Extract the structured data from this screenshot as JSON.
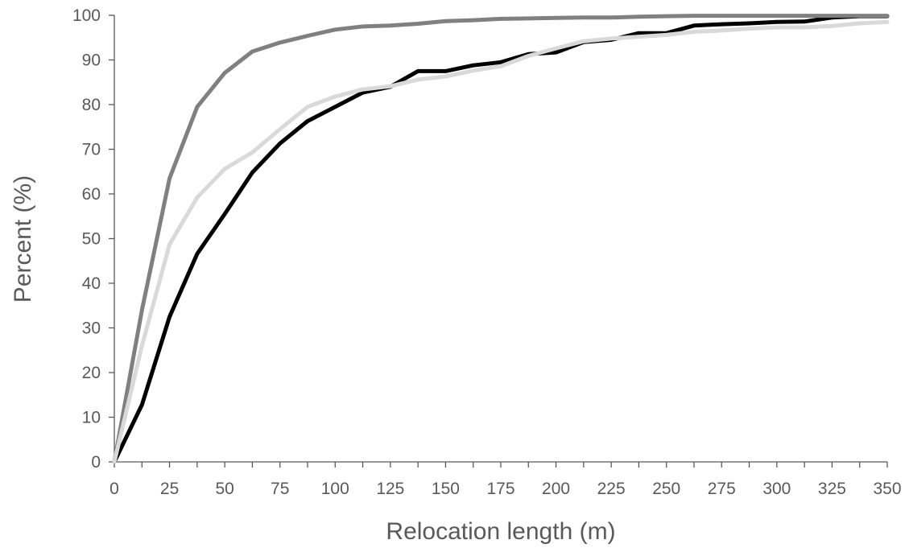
{
  "chart_data": {
    "type": "line",
    "xlabel": "Relocation length (m)",
    "ylabel": "Percent (%)",
    "xlim": [
      0,
      350
    ],
    "ylim": [
      0,
      100
    ],
    "x_ticks": [
      0,
      25,
      50,
      75,
      100,
      125,
      150,
      175,
      200,
      225,
      250,
      275,
      300,
      325,
      350
    ],
    "y_ticks": [
      0,
      10,
      20,
      30,
      40,
      50,
      60,
      70,
      80,
      90,
      100
    ],
    "grid": false,
    "legend": "none",
    "x": [
      0,
      12.5,
      25,
      37.5,
      50,
      62.5,
      75,
      87.5,
      100,
      112.5,
      125,
      137.5,
      150,
      162.5,
      175,
      187.5,
      200,
      212.5,
      225,
      237.5,
      250,
      262.5,
      275,
      287.5,
      300,
      312.5,
      325,
      337.5,
      350
    ],
    "series": [
      {
        "color": "#000000",
        "values": [
          0,
          12.8,
          32.5,
          46.6,
          55.5,
          64.8,
          71.3,
          76.3,
          79.5,
          82.7,
          84,
          87.5,
          87.5,
          88.8,
          89.5,
          91.3,
          91.7,
          94,
          94.5,
          96,
          96,
          97.7,
          98,
          98.2,
          98.5,
          98.6,
          99.5,
          99.8,
          99.8
        ]
      },
      {
        "color": "#808080",
        "values": [
          0,
          34,
          63.5,
          79.5,
          87.1,
          91.9,
          93.9,
          95.4,
          96.8,
          97.5,
          97.7,
          98.1,
          98.7,
          98.9,
          99.2,
          99.3,
          99.4,
          99.5,
          99.5,
          99.7,
          99.8,
          99.9,
          99.9,
          99.9,
          99.9,
          99.9,
          99.9,
          99.9,
          99.9
        ]
      },
      {
        "color": "#d9d9d9",
        "values": [
          0,
          26,
          48.7,
          59.2,
          65.6,
          69.3,
          74.5,
          79.5,
          81.8,
          83.4,
          84.1,
          85.6,
          86.3,
          87.6,
          88.6,
          90.9,
          92.6,
          94.2,
          94.8,
          95.2,
          95.6,
          96.3,
          96.6,
          97,
          97.3,
          97.3,
          97.6,
          98.2,
          98.5
        ]
      }
    ],
    "colors": {
      "axis": "#595959",
      "text": "#595959"
    }
  }
}
